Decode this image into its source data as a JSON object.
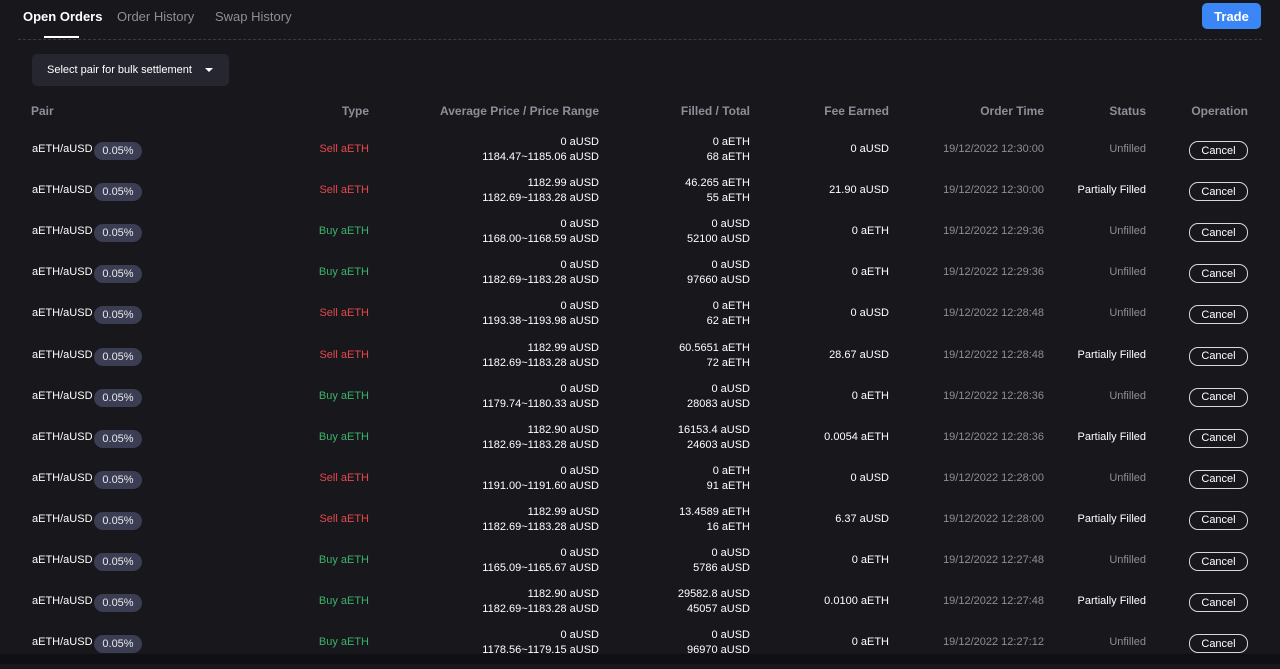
{
  "tabs": {
    "open_orders": "Open Orders",
    "order_history": "Order History",
    "swap_history": "Swap History"
  },
  "trade_button": "Trade",
  "bulk_select": {
    "label": "Select pair for bulk settlement"
  },
  "columns": {
    "pair": "Pair",
    "type": "Type",
    "price": "Average Price / Price Range",
    "filled": "Filled / Total",
    "fee": "Fee Earned",
    "time": "Order Time",
    "status": "Status",
    "operation": "Operation"
  },
  "colors": {
    "background": "#17171c",
    "accent": "#3b86f7",
    "sell": "#e5484d",
    "buy": "#3bb36b"
  },
  "orders": [
    {
      "pair": "aETH/aUSD",
      "fee_tier": "0.05%",
      "side": "sell",
      "type": "Sell aETH",
      "avg_price": "0 aUSD",
      "range": "1184.47~1185.06 aUSD",
      "filled": "0 aETH",
      "total": "68 aETH",
      "fee": "0 aUSD",
      "time": "19/12/2022 12:30:00",
      "status": "Unfilled",
      "operation": "Cancel"
    },
    {
      "pair": "aETH/aUSD",
      "fee_tier": "0.05%",
      "side": "sell",
      "type": "Sell aETH",
      "avg_price": "1182.99 aUSD",
      "range": "1182.69~1183.28 aUSD",
      "filled": "46.265 aETH",
      "total": "55 aETH",
      "fee": "21.90 aUSD",
      "time": "19/12/2022 12:30:00",
      "status": "Partially Filled",
      "operation": "Cancel"
    },
    {
      "pair": "aETH/aUSD",
      "fee_tier": "0.05%",
      "side": "buy",
      "type": "Buy aETH",
      "avg_price": "0 aUSD",
      "range": "1168.00~1168.59 aUSD",
      "filled": "0 aUSD",
      "total": "52100 aUSD",
      "fee": "0 aETH",
      "time": "19/12/2022 12:29:36",
      "status": "Unfilled",
      "operation": "Cancel"
    },
    {
      "pair": "aETH/aUSD",
      "fee_tier": "0.05%",
      "side": "buy",
      "type": "Buy aETH",
      "avg_price": "0 aUSD",
      "range": "1182.69~1183.28 aUSD",
      "filled": "0 aUSD",
      "total": "97660 aUSD",
      "fee": "0 aETH",
      "time": "19/12/2022 12:29:36",
      "status": "Unfilled",
      "operation": "Cancel"
    },
    {
      "pair": "aETH/aUSD",
      "fee_tier": "0.05%",
      "side": "sell",
      "type": "Sell aETH",
      "avg_price": "0 aUSD",
      "range": "1193.38~1193.98 aUSD",
      "filled": "0 aETH",
      "total": "62 aETH",
      "fee": "0 aUSD",
      "time": "19/12/2022 12:28:48",
      "status": "Unfilled",
      "operation": "Cancel"
    },
    {
      "pair": "aETH/aUSD",
      "fee_tier": "0.05%",
      "side": "sell",
      "type": "Sell aETH",
      "avg_price": "1182.99 aUSD",
      "range": "1182.69~1183.28 aUSD",
      "filled": "60.5651 aETH",
      "total": "72 aETH",
      "fee": "28.67 aUSD",
      "time": "19/12/2022 12:28:48",
      "status": "Partially Filled",
      "operation": "Cancel"
    },
    {
      "pair": "aETH/aUSD",
      "fee_tier": "0.05%",
      "side": "buy",
      "type": "Buy aETH",
      "avg_price": "0 aUSD",
      "range": "1179.74~1180.33 aUSD",
      "filled": "0 aUSD",
      "total": "28083 aUSD",
      "fee": "0 aETH",
      "time": "19/12/2022 12:28:36",
      "status": "Unfilled",
      "operation": "Cancel"
    },
    {
      "pair": "aETH/aUSD",
      "fee_tier": "0.05%",
      "side": "buy",
      "type": "Buy aETH",
      "avg_price": "1182.90 aUSD",
      "range": "1182.69~1183.28 aUSD",
      "filled": "16153.4 aUSD",
      "total": "24603 aUSD",
      "fee": "0.0054 aETH",
      "time": "19/12/2022 12:28:36",
      "status": "Partially Filled",
      "operation": "Cancel"
    },
    {
      "pair": "aETH/aUSD",
      "fee_tier": "0.05%",
      "side": "sell",
      "type": "Sell aETH",
      "avg_price": "0 aUSD",
      "range": "1191.00~1191.60 aUSD",
      "filled": "0 aETH",
      "total": "91 aETH",
      "fee": "0 aUSD",
      "time": "19/12/2022 12:28:00",
      "status": "Unfilled",
      "operation": "Cancel"
    },
    {
      "pair": "aETH/aUSD",
      "fee_tier": "0.05%",
      "side": "sell",
      "type": "Sell aETH",
      "avg_price": "1182.99 aUSD",
      "range": "1182.69~1183.28 aUSD",
      "filled": "13.4589 aETH",
      "total": "16 aETH",
      "fee": "6.37 aUSD",
      "time": "19/12/2022 12:28:00",
      "status": "Partially Filled",
      "operation": "Cancel"
    },
    {
      "pair": "aETH/aUSD",
      "fee_tier": "0.05%",
      "side": "buy",
      "type": "Buy aETH",
      "avg_price": "0 aUSD",
      "range": "1165.09~1165.67 aUSD",
      "filled": "0 aUSD",
      "total": "5786 aUSD",
      "fee": "0 aETH",
      "time": "19/12/2022 12:27:48",
      "status": "Unfilled",
      "operation": "Cancel"
    },
    {
      "pair": "aETH/aUSD",
      "fee_tier": "0.05%",
      "side": "buy",
      "type": "Buy aETH",
      "avg_price": "1182.90 aUSD",
      "range": "1182.69~1183.28 aUSD",
      "filled": "29582.8 aUSD",
      "total": "45057 aUSD",
      "fee": "0.0100 aETH",
      "time": "19/12/2022 12:27:48",
      "status": "Partially Filled",
      "operation": "Cancel"
    },
    {
      "pair": "aETH/aUSD",
      "fee_tier": "0.05%",
      "side": "buy",
      "type": "Buy aETH",
      "avg_price": "0 aUSD",
      "range": "1178.56~1179.15 aUSD",
      "filled": "0 aUSD",
      "total": "96970 aUSD",
      "fee": "0 aETH",
      "time": "19/12/2022 12:27:12",
      "status": "Unfilled",
      "operation": "Cancel"
    }
  ]
}
